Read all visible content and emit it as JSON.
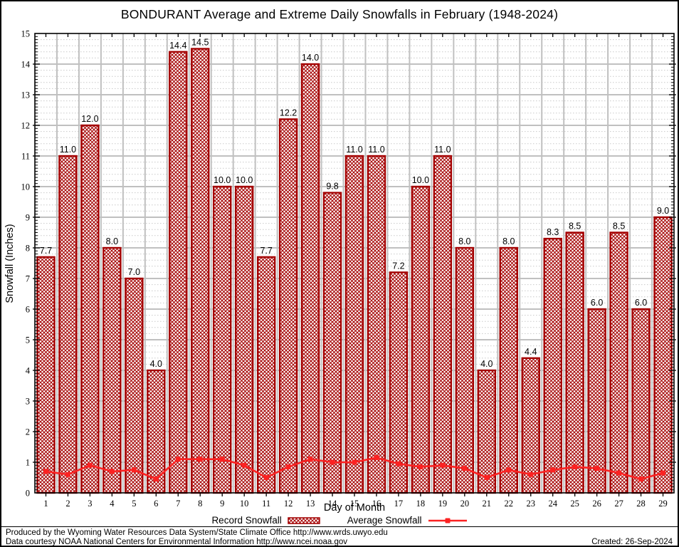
{
  "title": "BONDURANT Average and Extreme Daily Snowfalls in February (1948-2024)",
  "chart_data": {
    "type": "bar",
    "categories": [
      1,
      2,
      3,
      4,
      5,
      6,
      7,
      8,
      9,
      10,
      11,
      12,
      13,
      14,
      15,
      16,
      17,
      18,
      19,
      20,
      21,
      22,
      23,
      24,
      25,
      26,
      27,
      28,
      29
    ],
    "series": [
      {
        "name": "Record Snowfall",
        "type": "bar",
        "values": [
          7.7,
          11.0,
          12.0,
          8.0,
          7.0,
          4.0,
          14.4,
          14.5,
          10.0,
          10.0,
          7.7,
          12.2,
          14.0,
          9.8,
          11.0,
          11.0,
          7.2,
          10.0,
          11.0,
          8.0,
          4.0,
          8.0,
          4.4,
          8.3,
          8.5,
          6.0,
          8.5,
          6.0,
          9.0
        ]
      },
      {
        "name": "Average Snowfall",
        "type": "line",
        "values": [
          0.7,
          0.6,
          0.9,
          0.7,
          0.75,
          0.45,
          1.1,
          1.1,
          1.1,
          0.9,
          0.5,
          0.85,
          1.1,
          1.0,
          1.0,
          1.15,
          0.95,
          0.85,
          0.9,
          0.8,
          0.5,
          0.75,
          0.6,
          0.75,
          0.85,
          0.8,
          0.65,
          0.45,
          0.65
        ]
      }
    ],
    "title": "BONDURANT Average and Extreme Daily Snowfalls in February (1948-2024)",
    "xlabel": "Day of Month",
    "ylabel": "Snowfall (Inches)",
    "ylim": [
      0,
      15
    ],
    "ytick_step": 1,
    "grid": "major solid + minor dotted horizontal, vertical lines between days",
    "legend_position": "bottom",
    "bar_labels_decimals": 1
  },
  "colors": {
    "bar": "#a40000",
    "line": "#fb2222",
    "grid_major": "#c0c0c0",
    "grid_minor": "#c9c9c9",
    "frame": "#000000",
    "text": "#000000"
  },
  "footer": {
    "line1": "Produced by the Wyoming Water Resources Data System/State Climate Office http://www.wrds.uwyo.edu",
    "line2": "Data courtesy NOAA National Centers for Environmental Information http://www.ncei.noaa.gov",
    "created": "Created: 26-Sep-2024"
  }
}
